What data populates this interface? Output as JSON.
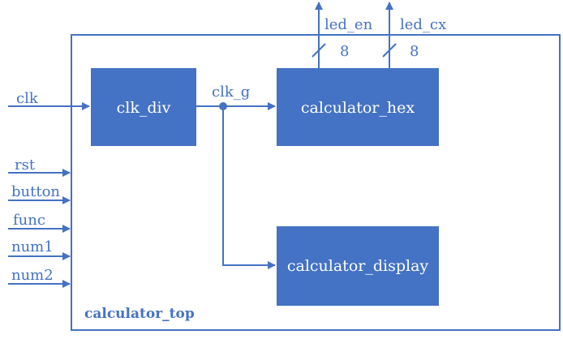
{
  "diagram": {
    "top_module": "calculator_top",
    "blocks": {
      "clk_div": "clk_div",
      "calculator_hex": "calculator_hex",
      "calculator_display": "calculator_display"
    },
    "inputs": {
      "clk": "clk",
      "rst": "rst",
      "button": "button",
      "func": "func",
      "num1": "num1",
      "num2": "num2"
    },
    "internal_signal": "clk_g",
    "outputs": {
      "led_en": {
        "name": "led_en",
        "width": "8"
      },
      "led_cx": {
        "name": "led_cx",
        "width": "8"
      }
    },
    "colors": {
      "primary": "#4472c4",
      "block_text": "#ffffff"
    }
  }
}
